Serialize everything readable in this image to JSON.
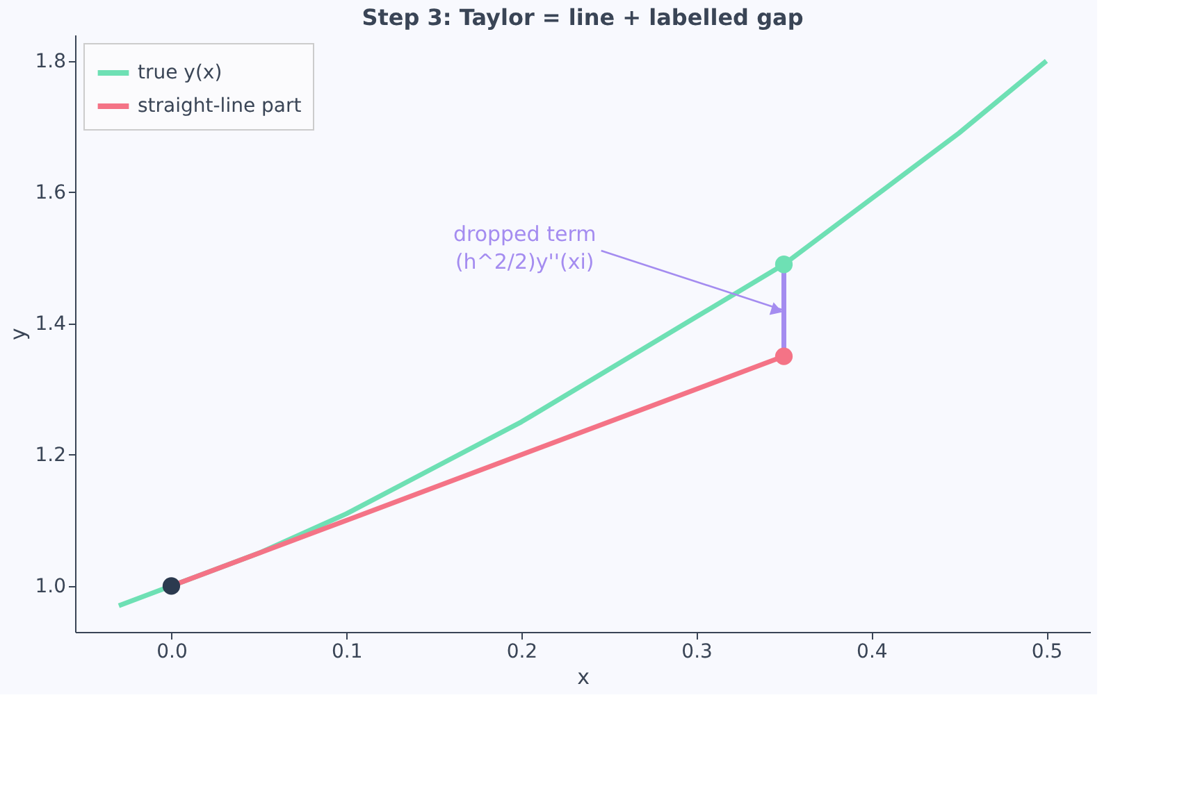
{
  "chart_data": {
    "type": "line",
    "title": "Step 3: Taylor = line + labelled gap",
    "xlabel": "x",
    "ylabel": "y",
    "series": [
      {
        "name": "true y(x)",
        "color": "#6ee0b4",
        "x": [
          -0.03,
          0,
          0.05,
          0.1,
          0.15,
          0.2,
          0.25,
          0.3,
          0.35,
          0.4,
          0.45,
          0.5
        ],
        "values": [
          0.97,
          1.0,
          1.05,
          1.11,
          1.18,
          1.25,
          1.33,
          1.41,
          1.49,
          1.59,
          1.69,
          1.8
        ]
      },
      {
        "name": "straight-line part",
        "color": "#f47386",
        "x": [
          0,
          0.35
        ],
        "values": [
          1.0,
          1.35
        ]
      },
      {
        "type": "line",
        "color": "#a48cf0",
        "x": [
          0.35,
          0.35
        ],
        "values": [
          1.35,
          1.49
        ]
      },
      {
        "type": "scatter",
        "marker": "circle",
        "color": "#2b3a4f",
        "x": [
          0
        ],
        "values": [
          1.0
        ]
      },
      {
        "type": "scatter",
        "marker": "circle",
        "color": "#6ee0b4",
        "x": [
          0.35
        ],
        "values": [
          1.49
        ]
      },
      {
        "type": "scatter",
        "marker": "circle",
        "color": "#f47386",
        "x": [
          0.35
        ],
        "values": [
          1.35
        ]
      }
    ],
    "annotations": [
      {
        "text": "dropped term\n(h^2/2)y''(xi)",
        "x": 0.35,
        "y": 1.42
      }
    ],
    "xlim": [
      -0.055,
      0.525
    ],
    "xticks": [
      {
        "value": 0,
        "label": "0.0"
      },
      {
        "value": 0.1,
        "label": "0.1"
      },
      {
        "value": 0.2,
        "label": "0.2"
      },
      {
        "value": 0.3,
        "label": "0.3"
      },
      {
        "value": 0.4,
        "label": "0.4"
      },
      {
        "value": 0.5,
        "label": "0.5"
      }
    ],
    "ylim": [
      0.93,
      1.84
    ],
    "yticks": [
      {
        "value": 1.0,
        "label": "1.0"
      },
      {
        "value": 1.2,
        "label": "1.2"
      },
      {
        "value": 1.4,
        "label": "1.4"
      },
      {
        "value": 1.6,
        "label": "1.6"
      },
      {
        "value": 1.8,
        "label": "1.8"
      }
    ],
    "grid": false,
    "legend": "top left",
    "marker": "none",
    "line_style": "solid"
  }
}
